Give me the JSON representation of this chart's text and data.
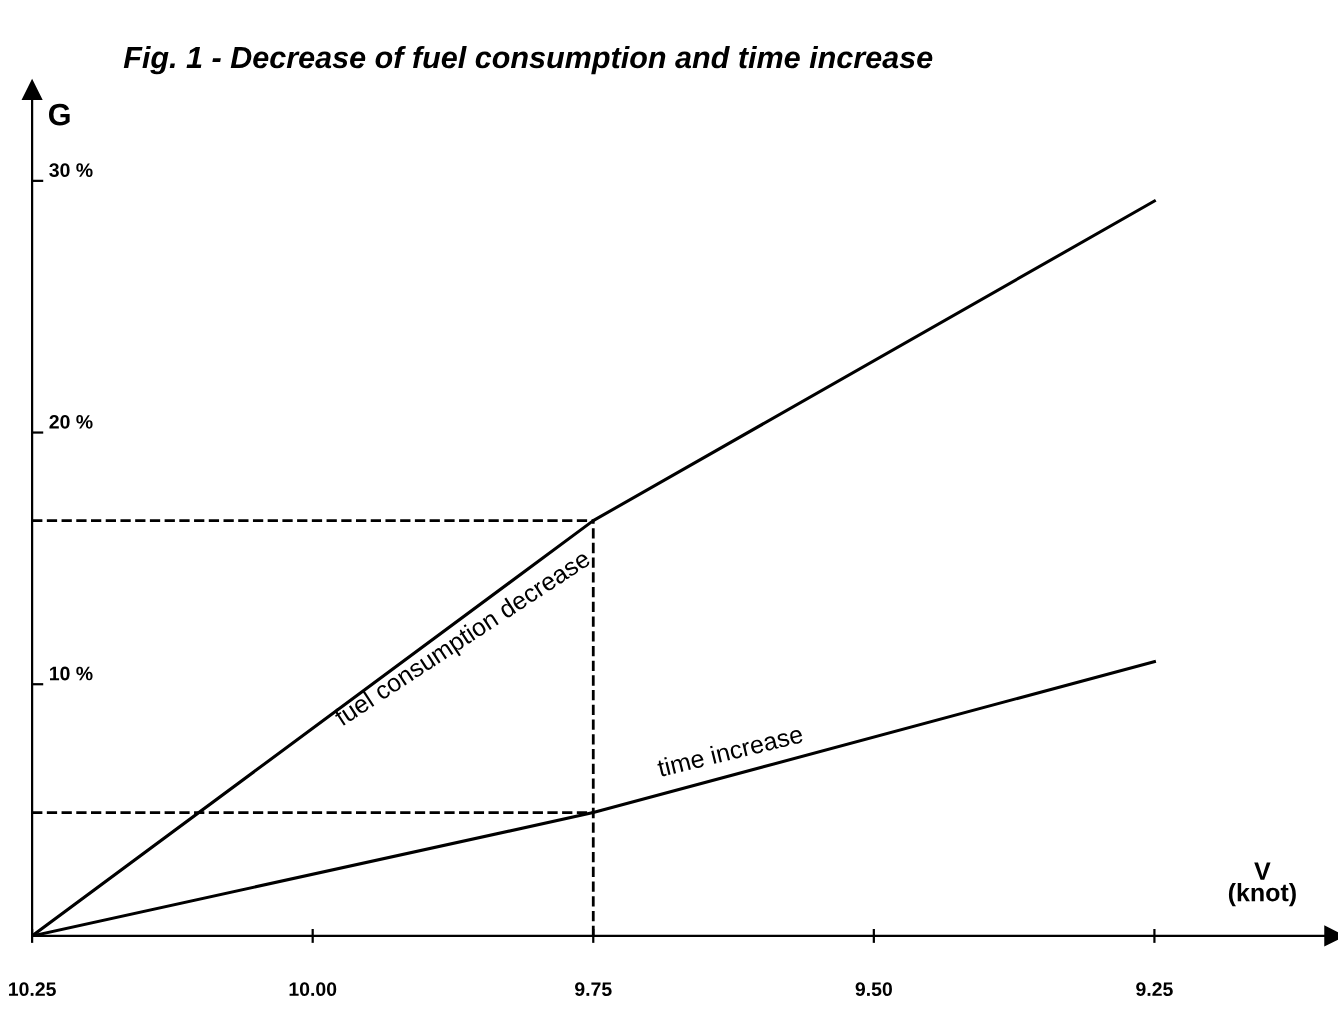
{
  "chart_data": {
    "type": "line",
    "title": "Fig. 1 - Decrease of fuel consumption and time increase",
    "xlabel": "V\n(knot)",
    "ylabel": "G",
    "x": [
      10.25,
      9.75,
      9.25
    ],
    "series": [
      {
        "name": "fuel consumption decrease",
        "color": "#000000",
        "values": [
          0,
          16.5,
          29.2
        ]
      },
      {
        "name": "time increase",
        "color": "#000000",
        "values": [
          0,
          4.9,
          10.9
        ]
      }
    ],
    "xlim": [
      10.25,
      9.09
    ],
    "ylim": [
      0,
      33.6
    ],
    "xticks": [
      {
        "value": 10.25,
        "label": "10.25"
      },
      {
        "value": 10.0,
        "label": "10.00"
      },
      {
        "value": 9.75,
        "label": "9.75"
      },
      {
        "value": 9.5,
        "label": "9.50"
      },
      {
        "value": 9.25,
        "label": "9.25"
      }
    ],
    "yticks": [
      {
        "value": 10,
        "label": "10 %"
      },
      {
        "value": 20,
        "label": "20 %"
      },
      {
        "value": 30,
        "label": "30 %"
      }
    ],
    "ref_lines": [
      {
        "axis": "x",
        "value": 9.75,
        "line_style": "dashed"
      },
      {
        "axis": "y",
        "value": 16.5,
        "line_style": "dashed"
      },
      {
        "axis": "y",
        "value": 4.9,
        "line_style": "dashed"
      }
    ],
    "grid": false,
    "legend": false,
    "marker": "none",
    "line_style": "solid"
  }
}
